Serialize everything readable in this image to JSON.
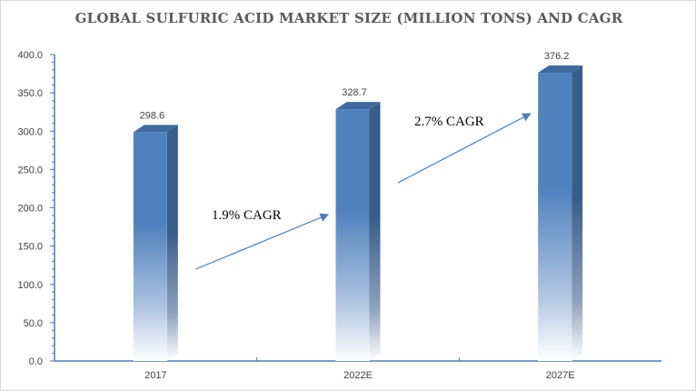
{
  "chart_data": {
    "type": "bar",
    "title": "GLOBAL SULFURIC ACID MARKET SIZE  (MILLION TONS) AND CAGR",
    "xlabel": "",
    "ylabel": "",
    "categories": [
      "2017",
      "2022E",
      "2027E"
    ],
    "values": [
      298.6,
      328.7,
      376.2
    ],
    "data_labels": [
      "298.6",
      "328.7",
      "376.2"
    ],
    "ylim": [
      0,
      400
    ],
    "yticks": [
      "0.0",
      "50.0",
      "100.0",
      "150.0",
      "200.0",
      "250.0",
      "300.0",
      "350.0",
      "400.0"
    ],
    "grid": false,
    "legend": "none",
    "annotations": [
      {
        "text": "1.9% CAGR",
        "from": "2017",
        "to": "2022E"
      },
      {
        "text": "2.7% CAGR",
        "from": "2022E",
        "to": "2027E"
      }
    ],
    "colors": {
      "bar": "#4f81bd",
      "bar_side": "#385d8a",
      "axis": "#4a7ebb",
      "arrow": "#4a7ebb"
    }
  }
}
